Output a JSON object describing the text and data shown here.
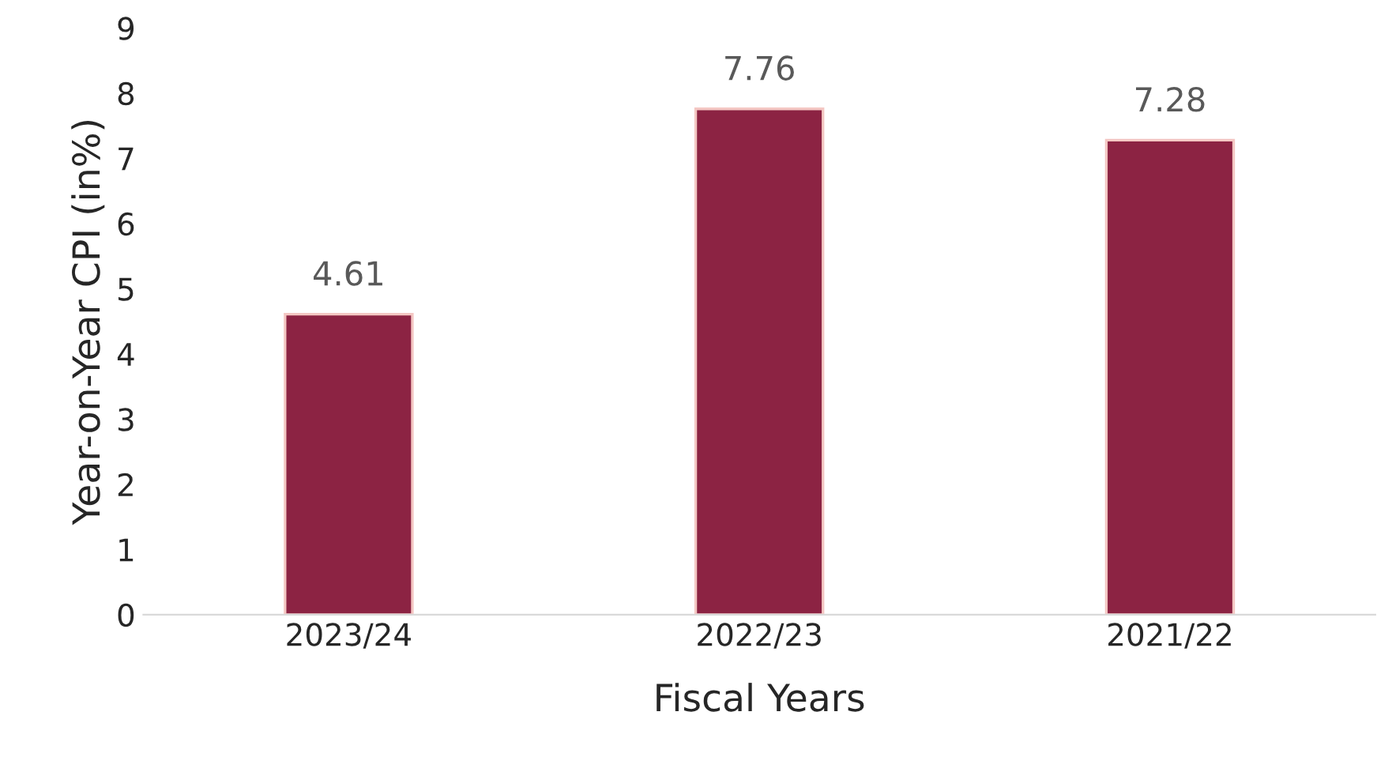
{
  "chart_data": {
    "type": "bar",
    "xlabel": "Fiscal Years",
    "ylabel": "Year-on-Year CPI (in%)",
    "categories": [
      "2023/24",
      "2022/23",
      "2021/22"
    ],
    "series": [
      {
        "color": "#8c2343",
        "values": [
          4.61,
          7.76,
          7.28
        ]
      }
    ],
    "ylim": [
      0,
      9
    ],
    "yticks": [
      0,
      1,
      2,
      3,
      4,
      5,
      6,
      7,
      8,
      9
    ],
    "grid": false,
    "data_labels": true
  }
}
